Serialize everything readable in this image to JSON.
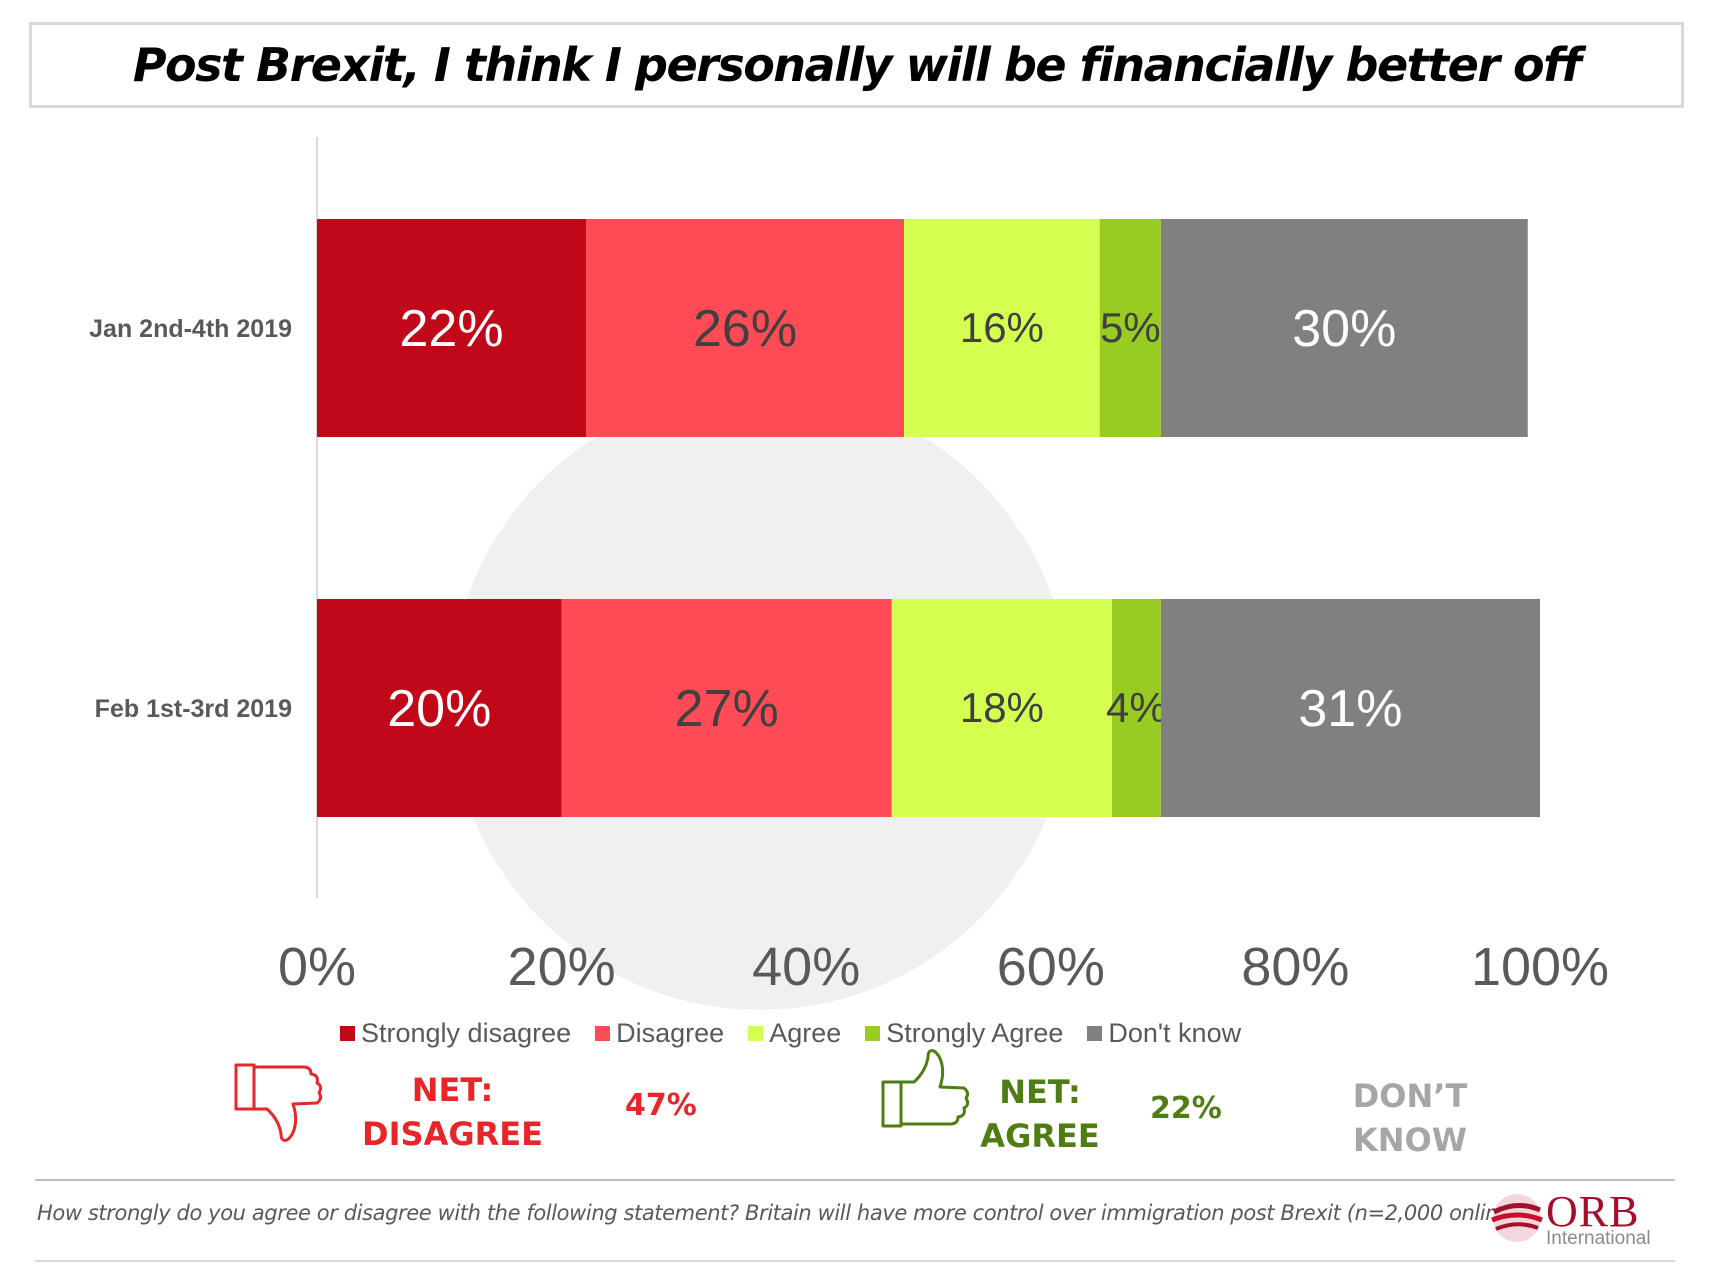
{
  "title": "Post Brexit, I think I personally will be financially better off",
  "chart_data": {
    "type": "bar",
    "orientation": "horizontal",
    "stacked": true,
    "categories": [
      "Jan 2nd-4th 2019",
      "Feb 1st-3rd 2019"
    ],
    "series": [
      {
        "name": "Strongly disagree",
        "color": "#c00818",
        "label_color": "#ffffff",
        "values": [
          22,
          20
        ],
        "labels": [
          "22%",
          "20%"
        ]
      },
      {
        "name": "Disagree",
        "color": "#ff4b55",
        "label_color": "#404040",
        "values": [
          26,
          27
        ],
        "labels": [
          "26%",
          "27%"
        ]
      },
      {
        "name": "Agree",
        "color": "#d5ff50",
        "label_color": "#404040",
        "values": [
          16,
          18
        ],
        "labels": [
          "16%",
          "18%"
        ]
      },
      {
        "name": "Strongly Agree",
        "color": "#99cc22",
        "label_color": "#404040",
        "values": [
          5,
          4
        ],
        "labels": [
          "5%",
          "4%"
        ]
      },
      {
        "name": "Don't know",
        "color": "#808080",
        "label_color": "#ffffff",
        "values": [
          30,
          31
        ],
        "labels": [
          "30%",
          "31%"
        ]
      }
    ],
    "xlim": [
      0,
      100
    ],
    "x_ticks": [
      "0%",
      "20%",
      "40%",
      "60%",
      "80%",
      "100%"
    ],
    "legend_position": "bottom",
    "grid": false
  },
  "net": {
    "disagree": {
      "label_line1": "NET:",
      "label_line2": "DISAGREE",
      "value": "47%",
      "color": "#e8262a",
      "icon": "thumbs-down-icon"
    },
    "agree": {
      "label_line1": "NET:",
      "label_line2": "AGREE",
      "value": "22%",
      "color": "#4e7d12",
      "icon": "thumbs-up-icon"
    },
    "dont_know": {
      "label_line1": "DON’T",
      "label_line2": "KNOW",
      "color": "#a6a6a6"
    }
  },
  "footnote": "How strongly do you agree or disagree with the following statement?  Britain will have more control over immigration post Brexit (n=2,000 online)",
  "logo": {
    "name": "ORB",
    "subtitle": "International"
  }
}
